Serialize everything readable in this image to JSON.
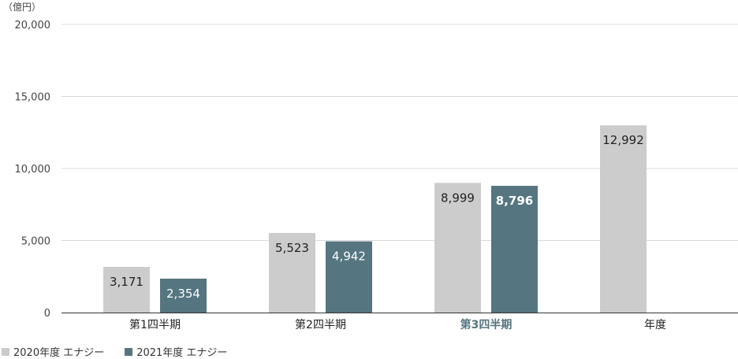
{
  "chart_data": {
    "type": "bar",
    "unit": "（億円）",
    "categories": [
      "第1四半期",
      "第2四半期",
      "第3四半期",
      "年度"
    ],
    "highlight_category": "第3四半期",
    "series": [
      {
        "name": "2020年度 エナジー",
        "color": "#cccccc",
        "label_color": "#222222",
        "values": [
          3171,
          5523,
          8999,
          12992
        ],
        "labels": [
          "3,171",
          "5,523",
          "8,999",
          "12,992"
        ]
      },
      {
        "name": "2021年度 エナジー",
        "color": "#557580",
        "label_color": "#ffffff",
        "values": [
          2354,
          4942,
          8796,
          null
        ],
        "labels": [
          "2,354",
          "4,942",
          "8,796",
          ""
        ]
      }
    ],
    "y_ticks": [
      0,
      5000,
      10000,
      15000,
      20000
    ],
    "y_tick_labels": [
      "0",
      "5,000",
      "10,000",
      "15,000",
      "20,000"
    ],
    "ylim": [
      0,
      20000
    ],
    "grid": true,
    "legend_position": "bottom-left",
    "colors": {
      "grid": "#d9d9d9",
      "axis": "#333333",
      "tick_text": "#444444",
      "category_text": "#222222",
      "highlight_text": "#557580"
    }
  }
}
